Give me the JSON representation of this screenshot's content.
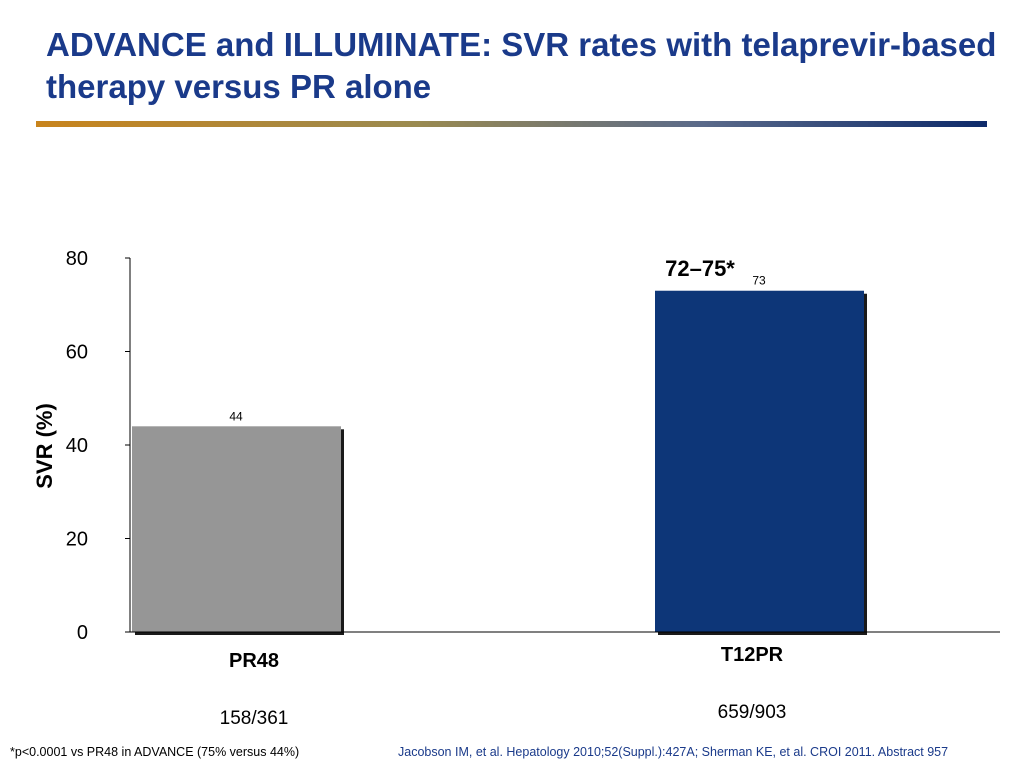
{
  "slide": {
    "title": "ADVANCE and ILLUMINATE: SVR rates with telaprevir-based therapy versus PR alone",
    "footnote": "*p<0.0001 vs PR48 in ADVANCE (75% versus 44%)",
    "citation": "Jacobson IM, et al. Hepatology 2010;52(Suppl.):427A; Sherman KE, et al. CROI 2011. Abstract 957"
  },
  "chart_data": {
    "type": "bar",
    "title": "",
    "ylabel": "SVR (%)",
    "xlabel": "",
    "ylim": [
      0,
      80
    ],
    "yticks": [
      0,
      20,
      40,
      60,
      80
    ],
    "grid": false,
    "categories": [
      "PR48",
      "T12PR"
    ],
    "values": [
      44,
      73
    ],
    "n_labels": [
      "158/361",
      "659/903"
    ],
    "bar_colors": [
      "#969696",
      "#0d3678"
    ],
    "annotations": [
      {
        "category": "T12PR",
        "text": "72–75*"
      }
    ]
  }
}
